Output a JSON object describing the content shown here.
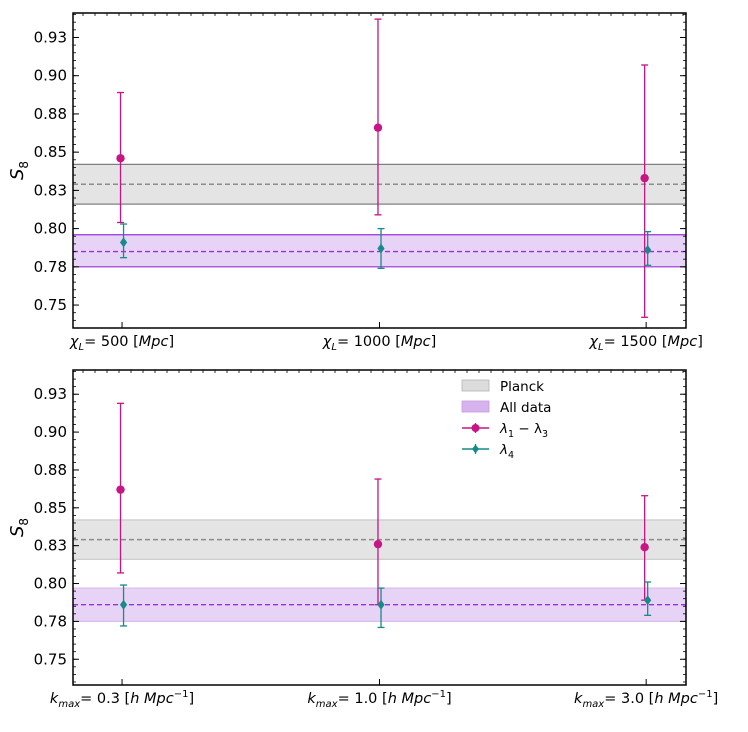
{
  "chart_data": [
    {
      "type": "errorbar",
      "ylabel": "S",
      "ylabel_sub": "8",
      "ylim": [
        0.74,
        0.946
      ],
      "yticks": [
        "0.93",
        "0.90",
        "0.88",
        "0.85",
        "0.83",
        "0.80",
        "0.78",
        "0.75"
      ],
      "ytick_values": [
        0.93,
        0.905,
        0.88,
        0.855,
        0.83,
        0.805,
        0.78,
        0.755
      ],
      "categories": [
        {
          "sym": "χ",
          "sub": "L",
          "rest": "= 500 [",
          "unit": "Mpc",
          "close": "]"
        },
        {
          "sym": "χ",
          "sub": "L",
          "rest": "= 1000 [",
          "unit": "Mpc",
          "close": "]"
        },
        {
          "sym": "χ",
          "sub": "L",
          "rest": "= 1500 [",
          "unit": "Mpc",
          "close": "]"
        }
      ],
      "bands": [
        {
          "name": "Planck",
          "center": 0.834,
          "low": 0.821,
          "high": 0.847,
          "color": "#e4e4e4",
          "edge": "#808080",
          "line": "#8c8c8c"
        },
        {
          "name": "All data",
          "center": 0.79,
          "low": 0.78,
          "high": 0.801,
          "color": "#e7d3f5",
          "edge": "#9b30d9",
          "line": "#9b30d9"
        }
      ],
      "series": [
        {
          "name": "λ1 − λ3",
          "color": "#c71585",
          "offset": -0.04,
          "points": [
            {
              "y": 0.851,
              "low": 0.809,
              "high": 0.894
            },
            {
              "y": 0.871,
              "low": 0.814,
              "high": 0.942
            },
            {
              "y": 0.838,
              "low": 0.747,
              "high": 0.912
            }
          ]
        },
        {
          "name": "λ4",
          "color": "#178a8a",
          "offset": 0.04,
          "points": [
            {
              "y": 0.796,
              "low": 0.786,
              "high": 0.808
            },
            {
              "y": 0.792,
              "low": 0.779,
              "high": 0.805
            },
            {
              "y": 0.791,
              "low": 0.781,
              "high": 0.803
            }
          ]
        }
      ]
    },
    {
      "type": "errorbar",
      "ylabel": "S",
      "ylabel_sub": "8",
      "ylim": [
        0.738,
        0.946
      ],
      "yticks": [
        "0.93",
        "0.90",
        "0.88",
        "0.85",
        "0.83",
        "0.80",
        "0.78",
        "0.75"
      ],
      "ytick_values": [
        0.93,
        0.905,
        0.88,
        0.855,
        0.83,
        0.805,
        0.78,
        0.755
      ],
      "categories": [
        {
          "sym": "k",
          "sub": "max",
          "rest": "= 0.3 [",
          "unit": "h Mpc",
          "sup": "−1",
          "close": "]"
        },
        {
          "sym": "k",
          "sub": "max",
          "rest": "= 1.0 [",
          "unit": "h Mpc",
          "sup": "−1",
          "close": "]"
        },
        {
          "sym": "k",
          "sub": "max",
          "rest": "= 3.0 [",
          "unit": "h Mpc",
          "sup": "−1",
          "close": "]"
        }
      ],
      "bands": [
        {
          "name": "Planck",
          "center": 0.834,
          "low": 0.821,
          "high": 0.847,
          "color": "#e4e4e4",
          "edge": "#c8c8c8",
          "line": "#8c8c8c"
        },
        {
          "name": "All data",
          "center": 0.791,
          "low": 0.78,
          "high": 0.802,
          "color": "#e7d3f5",
          "edge": "#d8bde9",
          "line": "#9b30d9"
        }
      ],
      "series": [
        {
          "name": "λ1 − λ3",
          "color": "#c71585",
          "offset": -0.04,
          "points": [
            {
              "y": 0.867,
              "low": 0.812,
              "high": 0.924
            },
            {
              "y": 0.831,
              "low": 0.791,
              "high": 0.874
            },
            {
              "y": 0.829,
              "low": 0.794,
              "high": 0.863
            }
          ]
        },
        {
          "name": "λ4",
          "color": "#178a8a",
          "offset": 0.04,
          "points": [
            {
              "y": 0.791,
              "low": 0.777,
              "high": 0.804
            },
            {
              "y": 0.791,
              "low": 0.776,
              "high": 0.802
            },
            {
              "y": 0.794,
              "low": 0.784,
              "high": 0.806
            }
          ]
        }
      ],
      "legend": {
        "position": "top-right",
        "items": [
          {
            "label": "Planck",
            "kind": "band",
            "color": "#dcdcdc",
            "edge": "#b4b4b4"
          },
          {
            "label": "All data",
            "kind": "band",
            "color": "#d7b3ee",
            "edge": "#c79ae6"
          },
          {
            "label": "λ",
            "sub1": "1",
            "mid": " − λ",
            "sub2": "3",
            "kind": "errorbar",
            "color": "#c71585"
          },
          {
            "label": "λ",
            "sub1": "4",
            "kind": "errorbar",
            "color": "#178a8a"
          }
        ]
      }
    }
  ]
}
